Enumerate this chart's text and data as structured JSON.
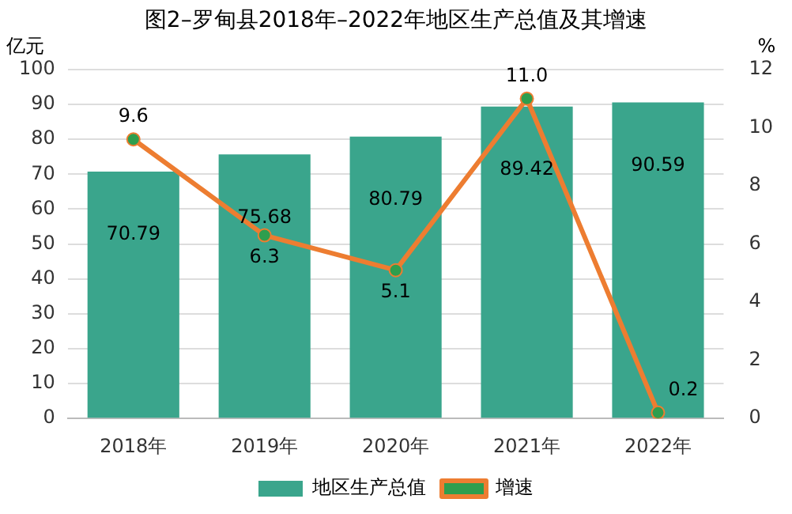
{
  "chart_data": {
    "type": "bar",
    "title": "图2–罗甸县2018年–2022年地区生产总值及其增速",
    "ylabel": "亿元",
    "y2label": "%",
    "categories": [
      "2018年",
      "2019年",
      "2020年",
      "2021年",
      "2022年"
    ],
    "series": [
      {
        "name": "地区生产总值",
        "color": "#3aa58c",
        "values": [
          70.79,
          75.68,
          80.79,
          89.42,
          90.59
        ],
        "value_labels": [
          "70.79",
          "75.68",
          "80.79",
          "89.42",
          "90.59"
        ]
      },
      {
        "name": "增速",
        "type": "line",
        "axis": "y2",
        "color": "#ed7d31",
        "values": [
          9.6,
          6.3,
          5.1,
          11.0,
          0.2
        ],
        "value_labels": [
          "9.6",
          "6.3",
          "5.1",
          "11.0",
          "0.2"
        ]
      }
    ],
    "ylim": [
      0,
      100
    ],
    "yticks": [
      0,
      10,
      20,
      30,
      40,
      50,
      60,
      70,
      80,
      90,
      100
    ],
    "y2lim": [
      0,
      12
    ],
    "y2ticks": [
      0,
      2,
      4,
      6,
      8,
      10,
      12
    ],
    "grid": "y",
    "legend": "bottom",
    "marker": "circle",
    "line_style": "solid"
  }
}
